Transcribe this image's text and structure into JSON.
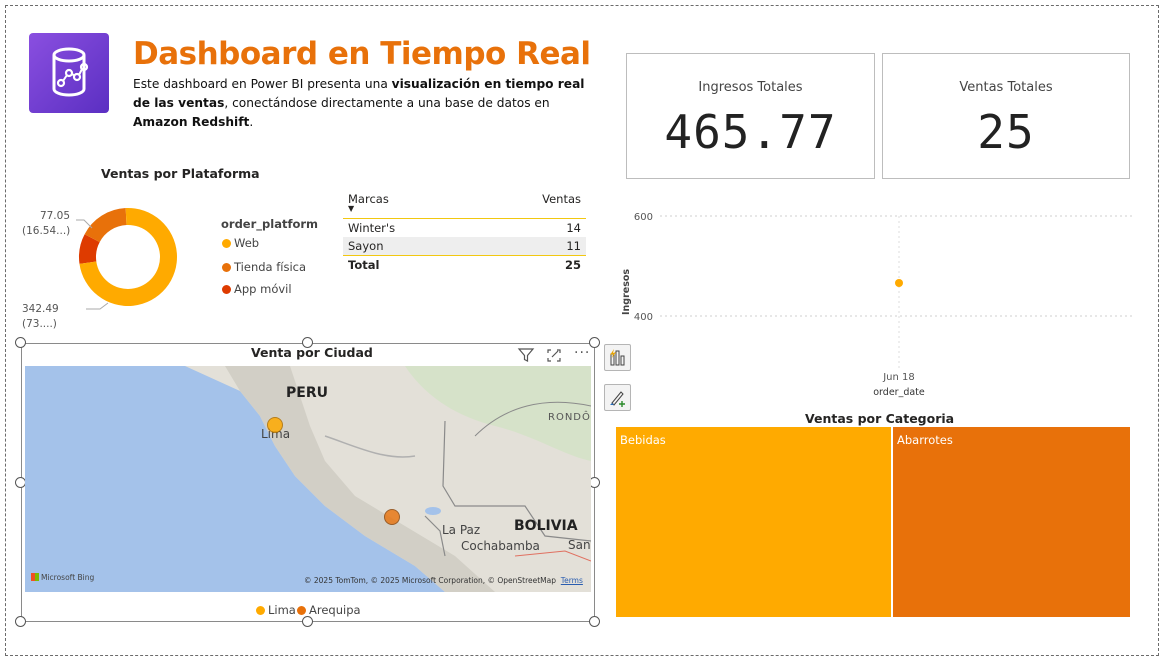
{
  "header": {
    "title": "Dashboard en Tiempo Real",
    "desc_1": "Este dashboard en Power BI presenta una ",
    "desc_2": "visualización en tiempo real de las ventas",
    "desc_3": ", conectándose directamente a una base de datos en ",
    "desc_4": "Amazon Redshift",
    "desc_5": "."
  },
  "kpis": [
    {
      "label": "Ingresos Totales",
      "value": "465.77"
    },
    {
      "label": "Ventas Totales",
      "value": "25"
    }
  ],
  "donut": {
    "title": "Ventas por Plataforma",
    "legend_title": "order_platform",
    "label_small_1": "77.05",
    "label_small_2": "(16.54...)",
    "label_big": "342.49 (73....)",
    "items": [
      {
        "label": "Web",
        "value": 342.49,
        "color": "#ffaa00"
      },
      {
        "label": "Tienda física",
        "value": 77.05,
        "color": "#e8710a"
      },
      {
        "label": "App móvil",
        "value": 46.23,
        "color": "#de3b00"
      }
    ]
  },
  "brands_table": {
    "col_brand": "Marcas",
    "col_sales": "Ventas",
    "rows": [
      {
        "brand": "Winter's",
        "sales": "14"
      },
      {
        "brand": "Sayon",
        "sales": "11"
      }
    ],
    "total_label": "Total",
    "total_value": "25"
  },
  "map": {
    "title": "Venta por Ciudad",
    "country_1": "PERU",
    "country_2": "BOLIVIA",
    "country_3": "RONDÔN",
    "city_1": "Lima",
    "city_2": "La Paz",
    "city_3": "Cochabamba",
    "city_4": "Sant",
    "provider": "Microsoft Bing",
    "attribution": "© 2025 TomTom, © 2025 Microsoft Corporation, © OpenStreetMap",
    "terms": "Terms",
    "legend": [
      {
        "label": "Lima",
        "color": "#ffaa00"
      },
      {
        "label": "Arequipa",
        "color": "#e8710a"
      }
    ]
  },
  "scatter": {
    "ylabel": "Ingresos",
    "xlabel": "order_date",
    "yticks": [
      "600",
      "400"
    ],
    "xtick": "Jun 18",
    "point_color": "#ffaa00"
  },
  "chart_data": [
    {
      "type": "pie",
      "title": "Ventas por Plataforma",
      "categories": [
        "Web",
        "Tienda física",
        "App móvil"
      ],
      "values": [
        342.49,
        77.05,
        46.23
      ]
    },
    {
      "type": "scatter",
      "xlabel": "order_date",
      "ylabel": "Ingresos",
      "x": [
        "Jun 18"
      ],
      "y": [
        465.77
      ],
      "ylim": [
        400,
        600
      ],
      "grid": true
    },
    {
      "type": "heatmap",
      "title": "Ventas por Categoria",
      "categories": [
        "Bebidas",
        "Abarrotes"
      ],
      "values": [
        13,
        12
      ]
    }
  ],
  "treemap": {
    "title": "Ventas por Categoria",
    "items": [
      {
        "label": "Bebidas",
        "color": "#ffaa00"
      },
      {
        "label": "Abarrotes",
        "color": "#e8710a"
      }
    ]
  }
}
